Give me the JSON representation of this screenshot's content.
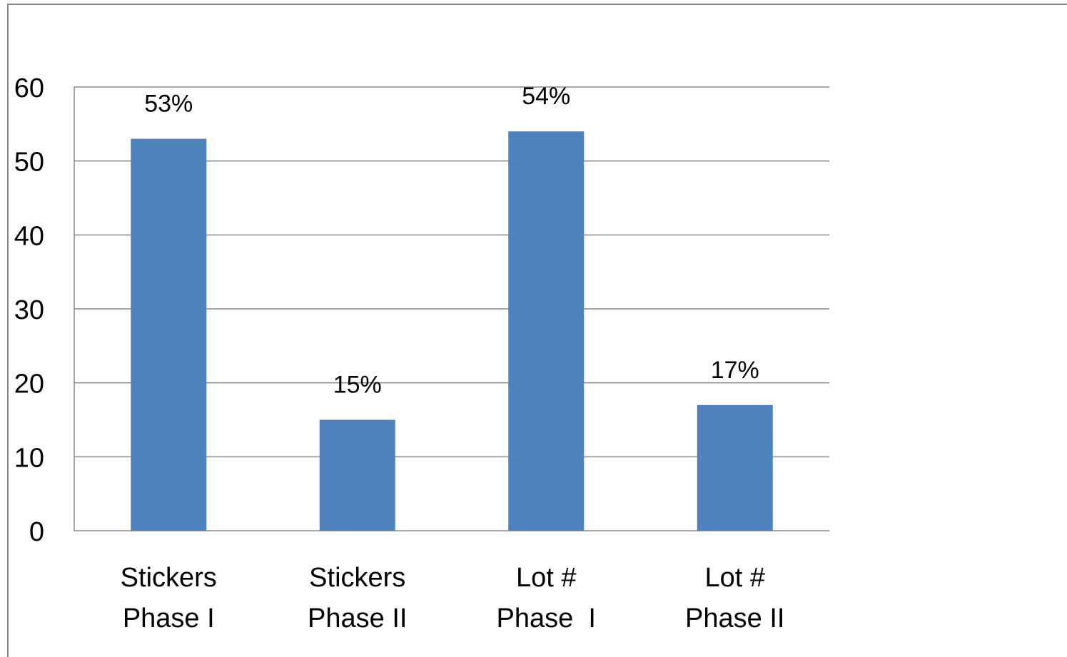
{
  "chart_data": {
    "type": "bar",
    "categories": [
      [
        "Stickers",
        "Phase I"
      ],
      [
        "Stickers",
        "Phase II"
      ],
      [
        "Lot #",
        "Phase  I"
      ],
      [
        "Lot #",
        "Phase II"
      ]
    ],
    "values": [
      53,
      15,
      54,
      17
    ],
    "data_labels": [
      "53%",
      "15%",
      "54%",
      "17%"
    ],
    "title": "",
    "xlabel": "",
    "ylabel": "",
    "ylim": [
      0,
      60
    ],
    "yticks": [
      0,
      10,
      20,
      30,
      40,
      50,
      60
    ],
    "grid": true,
    "legend": "none",
    "colors": {
      "bar": "#4F81BD",
      "grid": "#888888"
    }
  }
}
